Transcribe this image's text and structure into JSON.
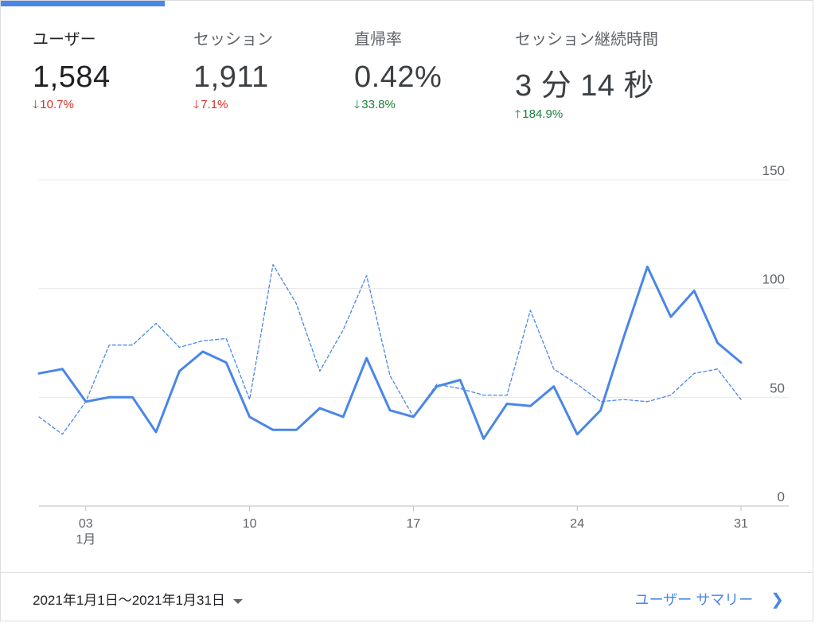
{
  "metrics": [
    {
      "label": "ユーザー",
      "value": "1,584",
      "change": "10.7%",
      "direction": "down",
      "active": true
    },
    {
      "label": "セッション",
      "value": "1,911",
      "change": "7.1%",
      "direction": "down",
      "active": false
    },
    {
      "label": "直帰率",
      "value": "0.42%",
      "change": "33.8%",
      "direction": "down",
      "active": false
    },
    {
      "label": "セッション継続時間",
      "value": "3 分 14 秒",
      "change": "184.9%",
      "direction": "up",
      "active": false
    }
  ],
  "colors": {
    "accent": "#4a86e8",
    "down": "#d93025",
    "up_good": "#188038",
    "down_good": "#188038"
  },
  "chart_data": {
    "type": "line",
    "x": [
      1,
      2,
      3,
      4,
      5,
      6,
      7,
      8,
      9,
      10,
      11,
      12,
      13,
      14,
      15,
      16,
      17,
      18,
      19,
      20,
      21,
      22,
      23,
      24,
      25,
      26,
      27,
      28,
      29,
      30,
      31
    ],
    "series": [
      {
        "values": [
          61,
          63,
          48,
          50,
          50,
          34,
          62,
          71,
          66,
          41,
          35,
          35,
          45,
          41,
          68,
          44,
          41,
          55,
          58,
          31,
          47,
          46,
          55,
          33,
          44,
          78,
          110,
          87,
          99,
          75,
          66
        ],
        "style": "solid"
      },
      {
        "values": [
          41,
          33,
          48,
          74,
          74,
          84,
          73,
          76,
          77,
          49,
          111,
          93,
          62,
          81,
          106,
          60,
          41,
          56,
          54,
          51,
          51,
          90,
          63,
          56,
          48,
          49,
          48,
          51,
          61,
          63,
          49
        ],
        "style": "dashed"
      }
    ],
    "xticks": [
      {
        "x": 3,
        "label": "03",
        "sub": "1月"
      },
      {
        "x": 10,
        "label": "10",
        "sub": ""
      },
      {
        "x": 17,
        "label": "17",
        "sub": ""
      },
      {
        "x": 24,
        "label": "24",
        "sub": ""
      },
      {
        "x": 31,
        "label": "31",
        "sub": ""
      }
    ],
    "yticks": [
      0,
      50,
      100,
      150
    ],
    "ylim": [
      0,
      150
    ],
    "grid": true,
    "legend": "none"
  },
  "footer": {
    "date_range": "2021年1月1日～2021年1月31日",
    "summary_link": "ユーザー サマリー"
  }
}
